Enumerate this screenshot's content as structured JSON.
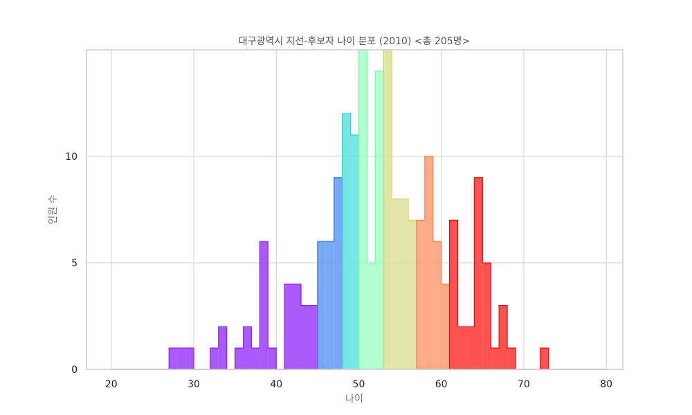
{
  "chart_data": {
    "type": "bar",
    "title": "대구광역시 지선-후보자 나이 분포 (2010)  <총 205명>",
    "xlabel": "나이",
    "ylabel": "인원 수",
    "xlim": [
      17,
      82
    ],
    "ylim": [
      0,
      15
    ],
    "xticks": [
      20,
      30,
      40,
      50,
      60,
      70,
      80
    ],
    "yticks": [
      0,
      5,
      10
    ],
    "grid": true,
    "bin_width": 1,
    "bins": [
      {
        "x": 20,
        "count": 0
      },
      {
        "x": 21,
        "count": 0
      },
      {
        "x": 22,
        "count": 0
      },
      {
        "x": 23,
        "count": 0
      },
      {
        "x": 24,
        "count": 0
      },
      {
        "x": 25,
        "count": 0
      },
      {
        "x": 26,
        "count": 0
      },
      {
        "x": 27,
        "count": 1
      },
      {
        "x": 28,
        "count": 1
      },
      {
        "x": 29,
        "count": 1
      },
      {
        "x": 30,
        "count": 0
      },
      {
        "x": 31,
        "count": 0
      },
      {
        "x": 32,
        "count": 1
      },
      {
        "x": 33,
        "count": 2
      },
      {
        "x": 34,
        "count": 0
      },
      {
        "x": 35,
        "count": 1
      },
      {
        "x": 36,
        "count": 2
      },
      {
        "x": 37,
        "count": 1
      },
      {
        "x": 38,
        "count": 6
      },
      {
        "x": 39,
        "count": 1
      },
      {
        "x": 40,
        "count": 0
      },
      {
        "x": 41,
        "count": 4
      },
      {
        "x": 42,
        "count": 4
      },
      {
        "x": 43,
        "count": 3
      },
      {
        "x": 44,
        "count": 3
      },
      {
        "x": 45,
        "count": 6
      },
      {
        "x": 46,
        "count": 6
      },
      {
        "x": 47,
        "count": 9
      },
      {
        "x": 48,
        "count": 12
      },
      {
        "x": 49,
        "count": 11
      },
      {
        "x": 50,
        "count": 15
      },
      {
        "x": 51,
        "count": 5
      },
      {
        "x": 52,
        "count": 14
      },
      {
        "x": 53,
        "count": 15
      },
      {
        "x": 54,
        "count": 8
      },
      {
        "x": 55,
        "count": 8
      },
      {
        "x": 56,
        "count": 7
      },
      {
        "x": 57,
        "count": 7
      },
      {
        "x": 58,
        "count": 10
      },
      {
        "x": 59,
        "count": 6
      },
      {
        "x": 60,
        "count": 4
      },
      {
        "x": 61,
        "count": 7
      },
      {
        "x": 62,
        "count": 2
      },
      {
        "x": 63,
        "count": 2
      },
      {
        "x": 64,
        "count": 9
      },
      {
        "x": 65,
        "count": 5
      },
      {
        "x": 66,
        "count": 1
      },
      {
        "x": 67,
        "count": 3
      },
      {
        "x": 68,
        "count": 1
      },
      {
        "x": 69,
        "count": 0
      },
      {
        "x": 70,
        "count": 0
      },
      {
        "x": 71,
        "count": 0
      },
      {
        "x": 72,
        "count": 1
      },
      {
        "x": 73,
        "count": 0
      },
      {
        "x": 74,
        "count": 0
      },
      {
        "x": 75,
        "count": 0
      },
      {
        "x": 76,
        "count": 0
      },
      {
        "x": 77,
        "count": 0
      },
      {
        "x": 78,
        "count": 0
      },
      {
        "x": 79,
        "count": 0
      }
    ],
    "color_bands": [
      {
        "from": 20,
        "to": 45,
        "fill": "#9b3dfa",
        "stroke": "#8a2be2"
      },
      {
        "from": 45,
        "to": 48,
        "fill": "#6399f4",
        "stroke": "#3d7be8"
      },
      {
        "from": 48,
        "to": 50,
        "fill": "#62e2e2",
        "stroke": "#2ed3d3"
      },
      {
        "from": 50,
        "to": 53,
        "fill": "#a3ffc7",
        "stroke": "#7df5ad"
      },
      {
        "from": 53,
        "to": 57,
        "fill": "#dbe29b",
        "stroke": "#cfd67a"
      },
      {
        "from": 57,
        "to": 61,
        "fill": "#fe9e72",
        "stroke": "#fb8250"
      },
      {
        "from": 61,
        "to": 80,
        "fill": "#fe3333",
        "stroke": "#e41414"
      }
    ]
  }
}
